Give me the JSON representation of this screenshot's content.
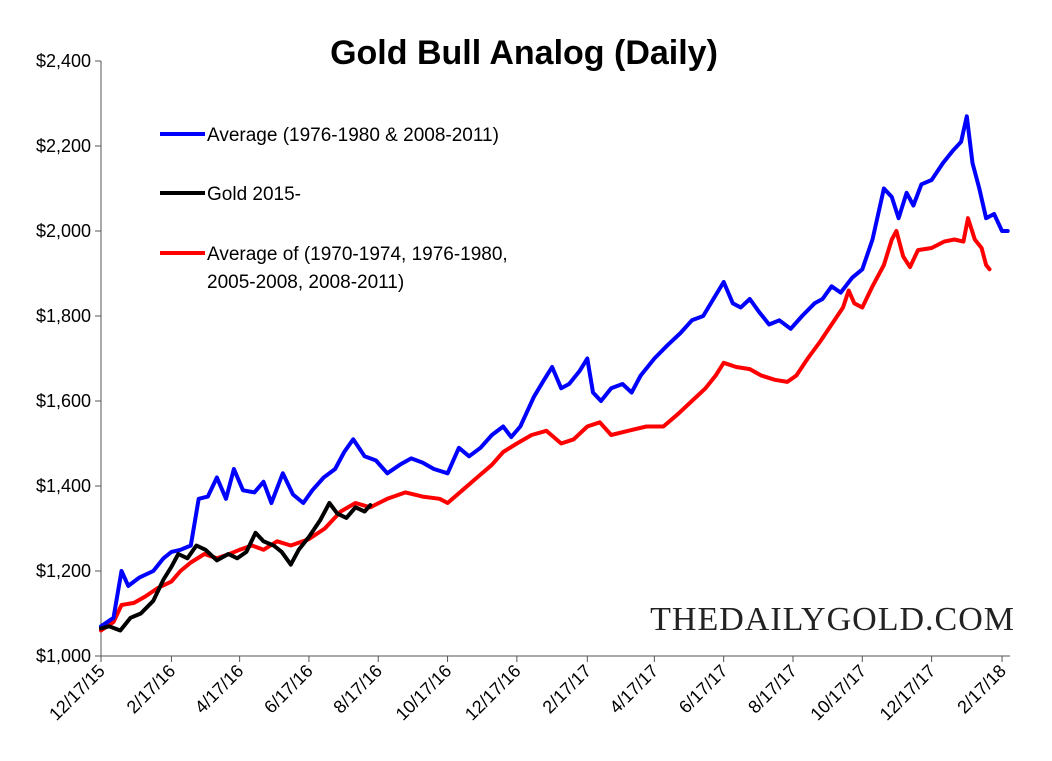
{
  "chart_data": {
    "type": "line",
    "title": "Gold Bull Analog (Daily)",
    "xlabel": "",
    "ylabel": "",
    "ylim": [
      1000,
      2400
    ],
    "yticks": [
      "$1,000",
      "$1,200",
      "$1,400",
      "$1,600",
      "$1,800",
      "$2,000",
      "$2,200",
      "$2,400"
    ],
    "xlim": [
      "2015-12-17",
      "2018-02-24"
    ],
    "xticks": [
      "12/17/15",
      "2/17/16",
      "4/17/16",
      "6/17/16",
      "8/17/16",
      "10/17/16",
      "12/17/16",
      "2/17/17",
      "4/17/17",
      "6/17/17",
      "8/17/17",
      "10/17/17",
      "12/17/17",
      "2/17/18"
    ],
    "grid": false,
    "legend_position": "top-left",
    "watermark": "THEDAILYGOLD.COM",
    "series": [
      {
        "name": "Average (1976-1980 & 2008-2011)",
        "color": "#0000ff",
        "points": [
          [
            "2015-12-17",
            1070
          ],
          [
            "2015-12-28",
            1090
          ],
          [
            "2016-01-04",
            1200
          ],
          [
            "2016-01-10",
            1165
          ],
          [
            "2016-01-20",
            1185
          ],
          [
            "2016-02-01",
            1200
          ],
          [
            "2016-02-10",
            1230
          ],
          [
            "2016-02-17",
            1245
          ],
          [
            "2016-02-25",
            1250
          ],
          [
            "2016-03-05",
            1260
          ],
          [
            "2016-03-12",
            1370
          ],
          [
            "2016-03-20",
            1375
          ],
          [
            "2016-03-28",
            1420
          ],
          [
            "2016-04-05",
            1370
          ],
          [
            "2016-04-12",
            1440
          ],
          [
            "2016-04-20",
            1390
          ],
          [
            "2016-04-30",
            1385
          ],
          [
            "2016-05-08",
            1410
          ],
          [
            "2016-05-15",
            1360
          ],
          [
            "2016-05-25",
            1430
          ],
          [
            "2016-06-03",
            1380
          ],
          [
            "2016-06-12",
            1360
          ],
          [
            "2016-06-20",
            1390
          ],
          [
            "2016-06-30",
            1420
          ],
          [
            "2016-07-10",
            1440
          ],
          [
            "2016-07-18",
            1480
          ],
          [
            "2016-07-26",
            1510
          ],
          [
            "2016-08-05",
            1470
          ],
          [
            "2016-08-15",
            1460
          ],
          [
            "2016-08-25",
            1430
          ],
          [
            "2016-09-05",
            1450
          ],
          [
            "2016-09-15",
            1465
          ],
          [
            "2016-09-25",
            1455
          ],
          [
            "2016-10-05",
            1440
          ],
          [
            "2016-10-17",
            1430
          ],
          [
            "2016-10-27",
            1490
          ],
          [
            "2016-11-05",
            1470
          ],
          [
            "2016-11-15",
            1490
          ],
          [
            "2016-11-25",
            1520
          ],
          [
            "2016-12-05",
            1540
          ],
          [
            "2016-12-12",
            1515
          ],
          [
            "2016-12-20",
            1540
          ],
          [
            "2017-01-01",
            1610
          ],
          [
            "2017-01-10",
            1650
          ],
          [
            "2017-01-17",
            1680
          ],
          [
            "2017-01-25",
            1630
          ],
          [
            "2017-02-01",
            1640
          ],
          [
            "2017-02-10",
            1670
          ],
          [
            "2017-02-17",
            1700
          ],
          [
            "2017-02-22",
            1620
          ],
          [
            "2017-03-01",
            1600
          ],
          [
            "2017-03-10",
            1630
          ],
          [
            "2017-03-20",
            1640
          ],
          [
            "2017-03-28",
            1620
          ],
          [
            "2017-04-05",
            1660
          ],
          [
            "2017-04-17",
            1700
          ],
          [
            "2017-04-28",
            1730
          ],
          [
            "2017-05-10",
            1760
          ],
          [
            "2017-05-20",
            1790
          ],
          [
            "2017-05-30",
            1800
          ],
          [
            "2017-06-08",
            1840
          ],
          [
            "2017-06-17",
            1880
          ],
          [
            "2017-06-25",
            1830
          ],
          [
            "2017-07-02",
            1820
          ],
          [
            "2017-07-10",
            1840
          ],
          [
            "2017-07-18",
            1810
          ],
          [
            "2017-07-27",
            1780
          ],
          [
            "2017-08-05",
            1790
          ],
          [
            "2017-08-15",
            1770
          ],
          [
            "2017-08-25",
            1800
          ],
          [
            "2017-09-05",
            1830
          ],
          [
            "2017-09-12",
            1840
          ],
          [
            "2017-09-20",
            1870
          ],
          [
            "2017-09-28",
            1855
          ],
          [
            "2017-10-08",
            1890
          ],
          [
            "2017-10-17",
            1910
          ],
          [
            "2017-10-26",
            1980
          ],
          [
            "2017-11-05",
            2100
          ],
          [
            "2017-11-12",
            2080
          ],
          [
            "2017-11-18",
            2030
          ],
          [
            "2017-11-25",
            2090
          ],
          [
            "2017-12-01",
            2060
          ],
          [
            "2017-12-08",
            2110
          ],
          [
            "2017-12-17",
            2120
          ],
          [
            "2017-12-27",
            2160
          ],
          [
            "2018-01-05",
            2190
          ],
          [
            "2018-01-12",
            2210
          ],
          [
            "2018-01-17",
            2270
          ],
          [
            "2018-01-22",
            2160
          ],
          [
            "2018-01-28",
            2100
          ],
          [
            "2018-02-03",
            2030
          ],
          [
            "2018-02-10",
            2040
          ],
          [
            "2018-02-17",
            2000
          ],
          [
            "2018-02-22",
            2000
          ]
        ]
      },
      {
        "name": "Gold 2015-",
        "color": "#000000",
        "points": [
          [
            "2015-12-17",
            1065
          ],
          [
            "2015-12-24",
            1070
          ],
          [
            "2016-01-03",
            1060
          ],
          [
            "2016-01-12",
            1090
          ],
          [
            "2016-01-21",
            1100
          ],
          [
            "2016-02-01",
            1130
          ],
          [
            "2016-02-10",
            1180
          ],
          [
            "2016-02-17",
            1210
          ],
          [
            "2016-02-23",
            1240
          ],
          [
            "2016-03-02",
            1230
          ],
          [
            "2016-03-10",
            1260
          ],
          [
            "2016-03-18",
            1250
          ],
          [
            "2016-03-28",
            1225
          ],
          [
            "2016-04-07",
            1240
          ],
          [
            "2016-04-15",
            1230
          ],
          [
            "2016-04-23",
            1245
          ],
          [
            "2016-05-01",
            1290
          ],
          [
            "2016-05-08",
            1270
          ],
          [
            "2016-05-17",
            1260
          ],
          [
            "2016-05-24",
            1245
          ],
          [
            "2016-06-01",
            1215
          ],
          [
            "2016-06-08",
            1250
          ],
          [
            "2016-06-17",
            1280
          ],
          [
            "2016-06-27",
            1320
          ],
          [
            "2016-07-05",
            1360
          ],
          [
            "2016-07-12",
            1335
          ],
          [
            "2016-07-20",
            1325
          ],
          [
            "2016-07-28",
            1350
          ],
          [
            "2016-08-05",
            1340
          ],
          [
            "2016-08-10",
            1355
          ]
        ]
      },
      {
        "name": "Average of (1970-1974, 1976-1980, 2005-2008, 2008-2011)",
        "color": "#ff0000",
        "points": [
          [
            "2015-12-17",
            1060
          ],
          [
            "2015-12-28",
            1080
          ],
          [
            "2016-01-04",
            1120
          ],
          [
            "2016-01-15",
            1125
          ],
          [
            "2016-01-25",
            1140
          ],
          [
            "2016-02-05",
            1160
          ],
          [
            "2016-02-17",
            1175
          ],
          [
            "2016-02-25",
            1200
          ],
          [
            "2016-03-05",
            1220
          ],
          [
            "2016-03-17",
            1240
          ],
          [
            "2016-03-28",
            1230
          ],
          [
            "2016-04-08",
            1240
          ],
          [
            "2016-04-17",
            1250
          ],
          [
            "2016-04-28",
            1260
          ],
          [
            "2016-05-08",
            1250
          ],
          [
            "2016-05-20",
            1270
          ],
          [
            "2016-06-01",
            1260
          ],
          [
            "2016-06-17",
            1275
          ],
          [
            "2016-07-01",
            1300
          ],
          [
            "2016-07-15",
            1340
          ],
          [
            "2016-07-28",
            1360
          ],
          [
            "2016-08-10",
            1350
          ],
          [
            "2016-08-25",
            1370
          ],
          [
            "2016-09-10",
            1385
          ],
          [
            "2016-09-25",
            1375
          ],
          [
            "2016-10-10",
            1370
          ],
          [
            "2016-10-17",
            1360
          ],
          [
            "2016-10-30",
            1390
          ],
          [
            "2016-11-12",
            1420
          ],
          [
            "2016-11-25",
            1450
          ],
          [
            "2016-12-05",
            1480
          ],
          [
            "2016-12-17",
            1500
          ],
          [
            "2016-12-30",
            1520
          ],
          [
            "2017-01-12",
            1530
          ],
          [
            "2017-01-25",
            1500
          ],
          [
            "2017-02-05",
            1510
          ],
          [
            "2017-02-17",
            1540
          ],
          [
            "2017-02-28",
            1550
          ],
          [
            "2017-03-10",
            1520
          ],
          [
            "2017-03-25",
            1530
          ],
          [
            "2017-04-10",
            1540
          ],
          [
            "2017-04-25",
            1540
          ],
          [
            "2017-05-08",
            1570
          ],
          [
            "2017-05-20",
            1600
          ],
          [
            "2017-06-01",
            1630
          ],
          [
            "2017-06-10",
            1660
          ],
          [
            "2017-06-17",
            1690
          ],
          [
            "2017-06-28",
            1680
          ],
          [
            "2017-07-10",
            1675
          ],
          [
            "2017-07-20",
            1660
          ],
          [
            "2017-08-01",
            1650
          ],
          [
            "2017-08-12",
            1645
          ],
          [
            "2017-08-20",
            1660
          ],
          [
            "2017-08-30",
            1700
          ],
          [
            "2017-09-10",
            1740
          ],
          [
            "2017-09-20",
            1780
          ],
          [
            "2017-09-30",
            1820
          ],
          [
            "2017-10-05",
            1860
          ],
          [
            "2017-10-10",
            1830
          ],
          [
            "2017-10-17",
            1820
          ],
          [
            "2017-10-26",
            1870
          ],
          [
            "2017-11-05",
            1920
          ],
          [
            "2017-11-12",
            1980
          ],
          [
            "2017-11-16",
            2000
          ],
          [
            "2017-11-22",
            1940
          ],
          [
            "2017-11-28",
            1915
          ],
          [
            "2017-12-05",
            1955
          ],
          [
            "2017-12-17",
            1960
          ],
          [
            "2017-12-28",
            1975
          ],
          [
            "2018-01-06",
            1980
          ],
          [
            "2018-01-14",
            1975
          ],
          [
            "2018-01-18",
            2030
          ],
          [
            "2018-01-24",
            1980
          ],
          [
            "2018-01-30",
            1960
          ],
          [
            "2018-02-03",
            1920
          ],
          [
            "2018-02-06",
            1910
          ]
        ]
      }
    ]
  }
}
